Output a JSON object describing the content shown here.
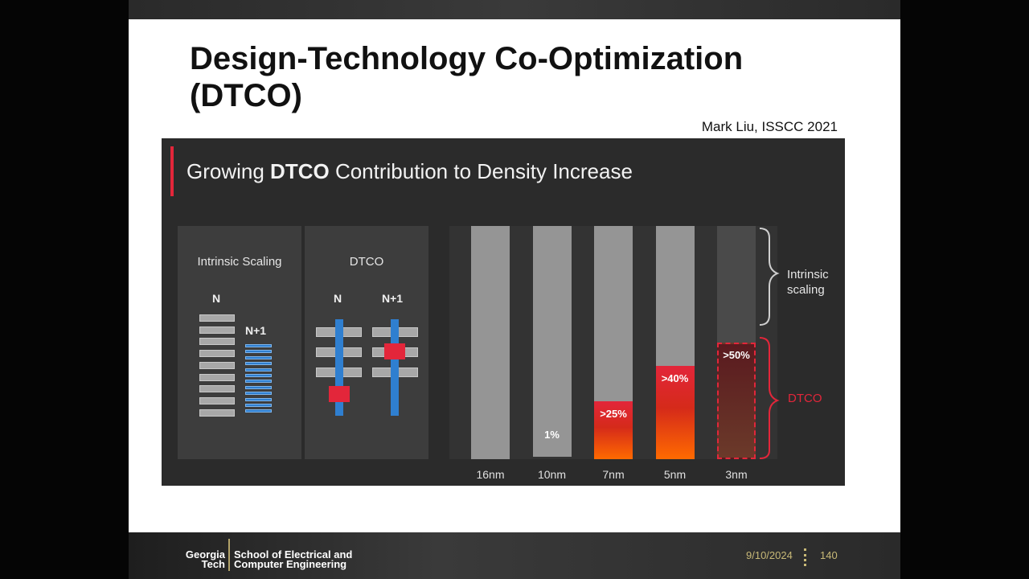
{
  "slide": {
    "title": "Design-Technology Co-Optimization (DTCO)",
    "citation": "Mark Liu, ISSCC 2021"
  },
  "figure": {
    "heading_pre": "Growing ",
    "heading_bold": "DTCO",
    "heading_post": " Contribution to Density Increase",
    "panel_intrinsic": {
      "label": "Intrinsic Scaling",
      "col_n": "N",
      "col_n1": "N+1"
    },
    "panel_dtco": {
      "label": "DTCO",
      "col_n": "N",
      "col_n1": "N+1"
    },
    "brace_intrinsic": "Intrinsic scaling",
    "brace_dtco": "DTCO",
    "colors": {
      "dtco_red": "#e3263a",
      "dtco_orange": "#ff6a00",
      "intrinsic_gray": "#959595",
      "metal_blue": "#2f7fd0"
    }
  },
  "chart_data": {
    "type": "bar",
    "categories": [
      "16nm",
      "10nm",
      "7nm",
      "5nm",
      "3nm"
    ],
    "series": [
      {
        "name": "Intrinsic scaling",
        "values": [
          100,
          99,
          75,
          60,
          50
        ]
      },
      {
        "name": "DTCO",
        "values": [
          0,
          1,
          25,
          40,
          50
        ]
      }
    ],
    "data_labels": [
      "",
      "1%",
      ">25%",
      ">40%",
      ">50%"
    ],
    "ylim": [
      0,
      100
    ]
  },
  "footer": {
    "logo_line1": "Georgia",
    "logo_line2": "Tech",
    "dept_line1": "School of Electrical and",
    "dept_line2": "Computer Engineering",
    "date": "9/10/2024",
    "page": "140"
  }
}
